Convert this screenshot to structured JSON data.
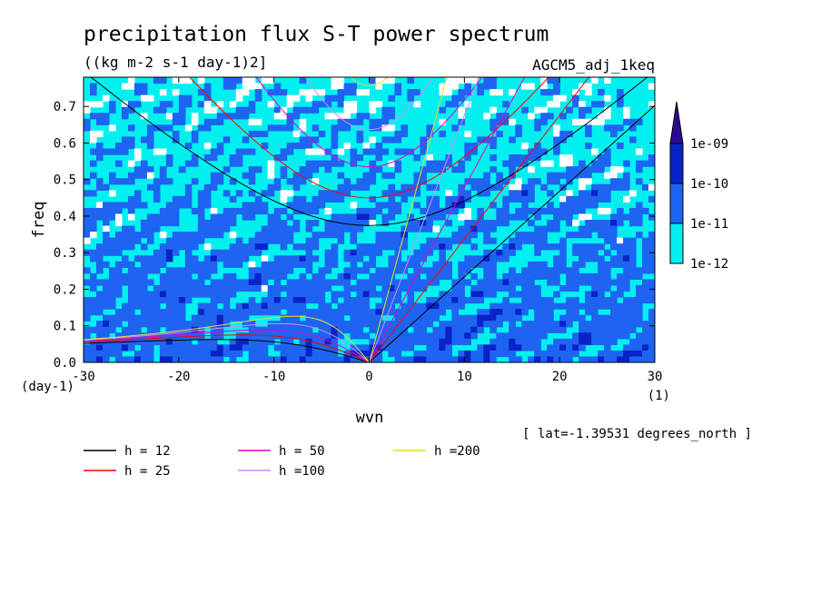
{
  "chart_data": {
    "type": "heatmap",
    "title": "precipitation flux S-T power spectrum",
    "units": "((kg m-2 s-1 day-1)2]",
    "run_label": "AGCM5_adj_1keq",
    "xlabel": "wvn",
    "ylabel": "freq",
    "x_unit": "(1)",
    "y_unit": "(day-1)",
    "xlim": [
      -30,
      30
    ],
    "ylim": [
      0,
      0.78
    ],
    "x_ticks": [
      -30,
      -20,
      -10,
      0,
      10,
      20,
      30
    ],
    "y_ticks": [
      0.0,
      0.1,
      0.2,
      0.3,
      0.4,
      0.5,
      0.6,
      0.7
    ],
    "x_tick_labels": [
      "-30",
      "-20",
      "-10",
      "0",
      "10",
      "20",
      "30"
    ],
    "y_tick_labels": [
      "0.0",
      "0.1",
      "0.2",
      "0.3",
      "0.4",
      "0.5",
      "0.6",
      "0.7"
    ],
    "contour_levels": [
      "1e-12",
      "1e-11",
      "1e-10",
      "1e-09"
    ],
    "fill_colors": [
      "#ffffff",
      "#00f0f0",
      "#1e64f0",
      "#0a23c8",
      "#2d0a96"
    ],
    "field_description": "power mostly 1e-12 to 1e-10 with scattered patches; higher near zero wavenumber and low frequency",
    "annotation": "[ lat=-1.39531 degrees_north ]",
    "dispersion_curves": [
      {
        "name": "h = 12",
        "label": "h = 12",
        "color": "#000000"
      },
      {
        "name": "h = 25",
        "label": "h = 25",
        "color": "#ff0000"
      },
      {
        "name": "h = 50",
        "label": "h = 50",
        "color": "#e600c8"
      },
      {
        "name": "h =100",
        "label": "h =100",
        "color": "#d28cff"
      },
      {
        "name": "h =200",
        "label": "h =200",
        "color": "#e6dc32"
      }
    ]
  }
}
